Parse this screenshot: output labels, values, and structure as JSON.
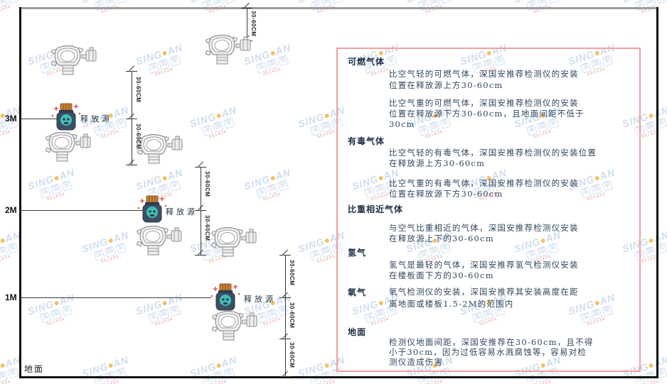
{
  "colors": {
    "panel_border": "#f2a0a0",
    "body_text": "#33475f",
    "heading_text": "#1f2f47",
    "watermark_blue": "#c3d5eb",
    "watermark_dot": "#f2b23d",
    "watermark_code_red": "#e8897a",
    "frame_line": "#111111",
    "ceiling_line": "#9c9c9c",
    "bottle_body": "#3d4f63",
    "bottle_cap": "#c87f35",
    "bottle_badge": "#3fc1b9",
    "sparkle_red": "#e05a5a"
  },
  "diagram": {
    "height_labels": [
      "3M",
      "2M",
      "1M"
    ],
    "ground_label": "地面",
    "release_source_label": "释放源",
    "dim_label": "30-60CM"
  },
  "panel": {
    "sections": [
      {
        "heading": "可燃气体",
        "paras": [
          [
            "比空气轻的可燃气体，深国安推荐检测仪的安装",
            "位置在释放源上方30-60cm"
          ],
          [
            "比空气重的可燃气体，深国安推荐检测仪的安装",
            "位置在释放源下方30-60cm，且地面间距不低于",
            "30cm"
          ]
        ]
      },
      {
        "heading": "有毒气体",
        "paras": [
          [
            "比空气轻的有毒气体，深国安推荐检测仪的安装位置",
            "在释放源上方30-60cm"
          ],
          [
            "比空气重的有毒气体，深国安推荐检测仪的安装",
            "位置在释放源下方30-60cm"
          ]
        ]
      },
      {
        "heading": "比重相近气体",
        "paras": [
          [
            "与空气比重相近的气体，深国安推荐检测仪安装",
            "在释放源上下的30-60cm"
          ]
        ]
      },
      {
        "heading": "氢气",
        "paras": [
          [
            "氢气是最轻的气体，深国安推荐氢气检测仪安装",
            "在楼板面下方的30-60cm"
          ]
        ]
      },
      {
        "heading": "氧气",
        "paras": [
          [
            "氧气检测仪的安装，深国安推荐其安装高度在距",
            "离地面或楼板1.5-2M的范围内"
          ]
        ]
      },
      {
        "heading": "地面",
        "paras": [
          [
            "检测仪地面间距，深国安推荐在30-60cm，且不得",
            "小于30cm，因为过低容易水溅腐蚀等，容易对检",
            "测仪造成伤害"
          ]
        ]
      }
    ]
  },
  "watermark": {
    "brand_left": "SING",
    "brand_right": "AN",
    "cjk": "深国安",
    "code": "661434"
  }
}
